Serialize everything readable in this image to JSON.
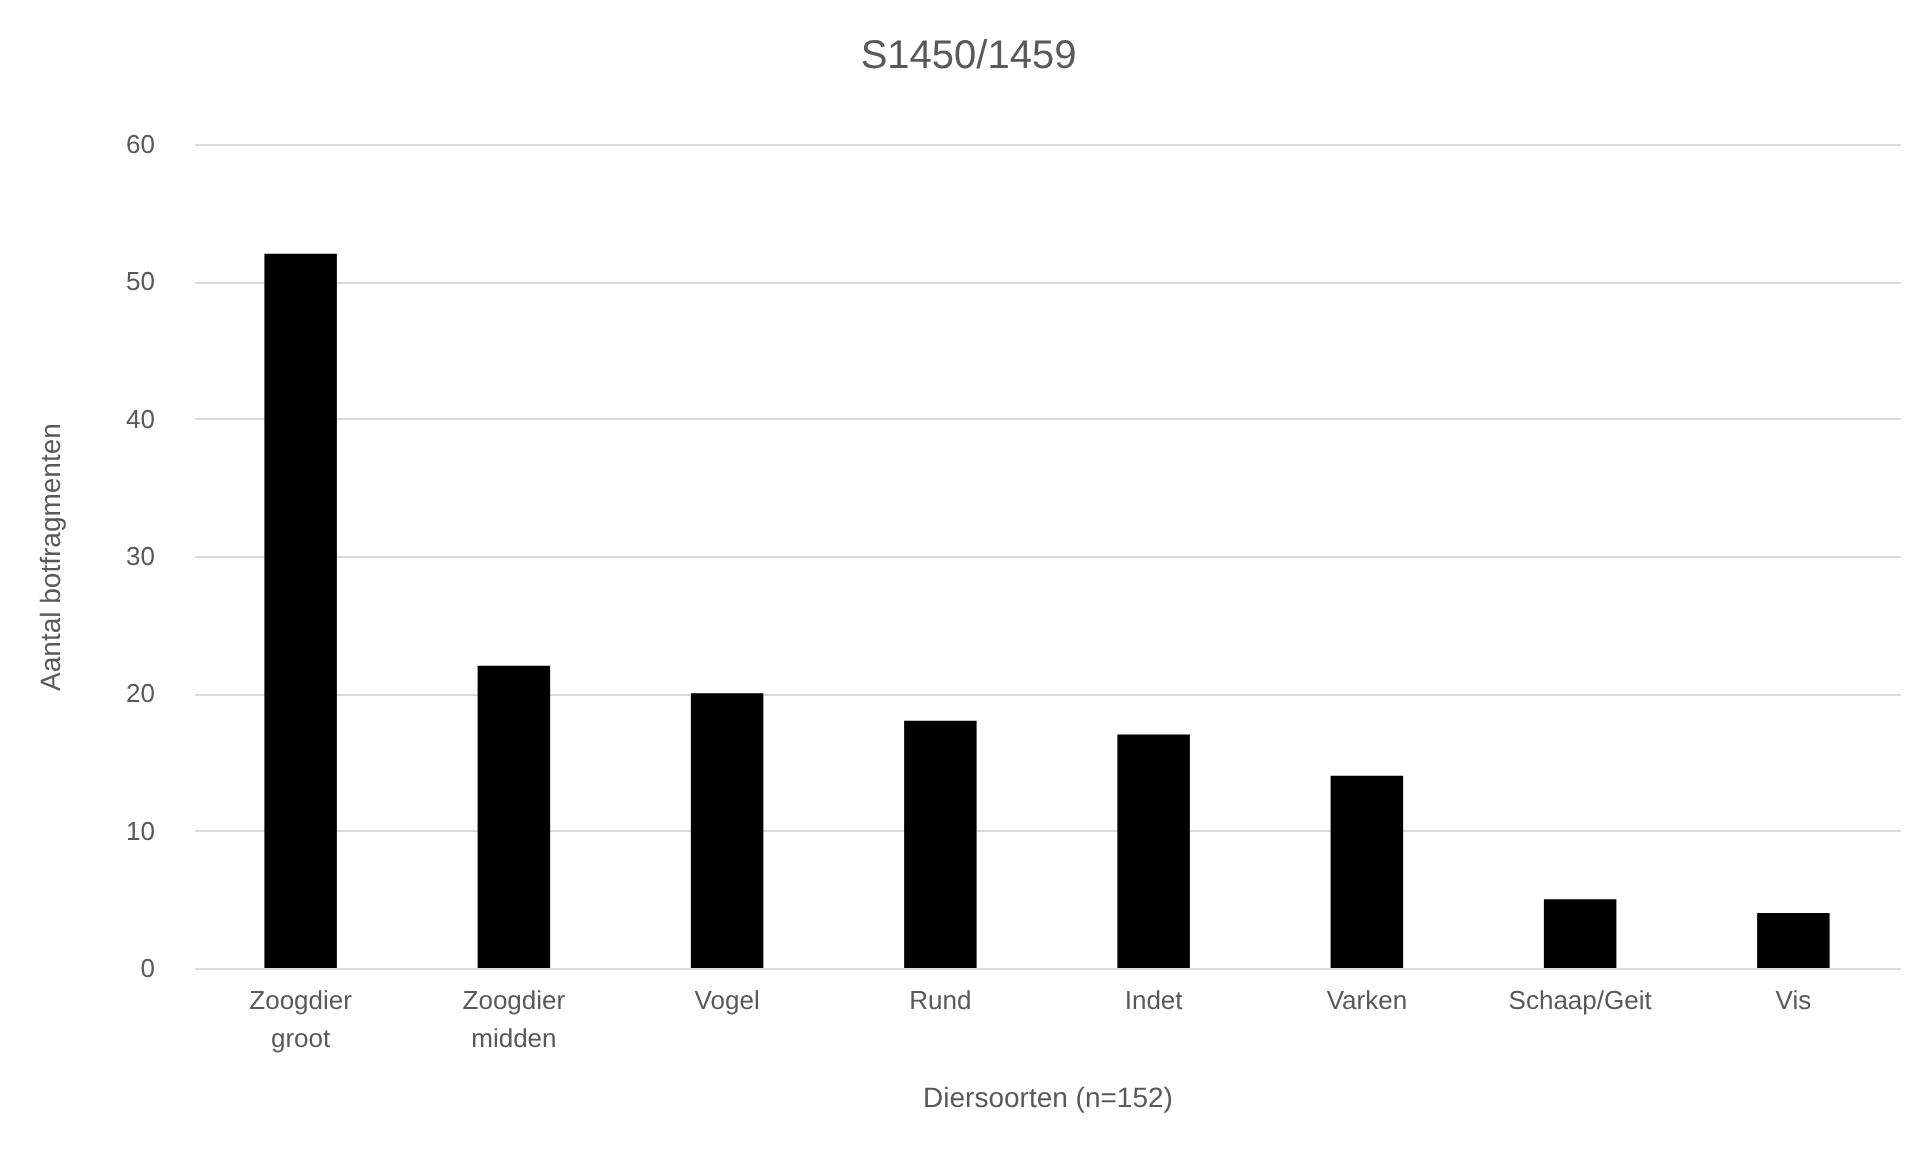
{
  "chart_data": {
    "type": "bar",
    "title": "S1450/1459",
    "xlabel": "Diersoorten (n=152)",
    "ylabel": "Aantal botfragmenten",
    "categories": [
      "Zoogdier groot",
      "Zoogdier midden",
      "Vogel",
      "Rund",
      "Indet",
      "Varken",
      "Schaap/Geit",
      "Vis"
    ],
    "values": [
      52,
      22,
      20,
      18,
      17,
      14,
      5,
      4
    ],
    "color": "#000000",
    "ylim": [
      0,
      60
    ],
    "yticks": [
      0,
      10,
      20,
      30,
      40,
      50,
      60
    ],
    "grid": "y"
  }
}
